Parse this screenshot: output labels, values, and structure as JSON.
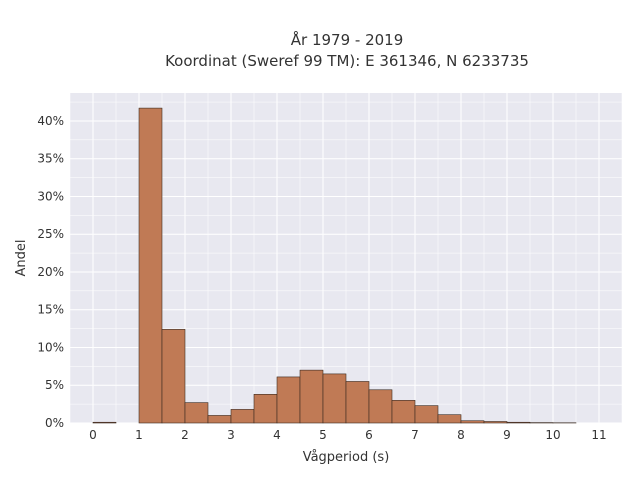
{
  "chart_data": {
    "type": "bar",
    "title_line1": "År 1979 - 2019",
    "title_line2": "Koordinat (Sweref 99 TM): E 361346, N 6233735",
    "xlabel": "Vågperiod (s)",
    "ylabel": "Andel",
    "xlim": [
      -0.5,
      11.5
    ],
    "ylim": [
      0,
      0.437
    ],
    "grid": true,
    "bin_width": 0.5,
    "x_ticks": [
      0,
      1,
      2,
      3,
      4,
      5,
      6,
      7,
      8,
      9,
      10,
      11
    ],
    "x_tick_labels": [
      "0",
      "1",
      "2",
      "3",
      "4",
      "5",
      "6",
      "7",
      "8",
      "9",
      "10",
      "11"
    ],
    "y_ticks": [
      0,
      0.05,
      0.1,
      0.15,
      0.2,
      0.25,
      0.3,
      0.35,
      0.4
    ],
    "y_tick_labels": [
      "0%",
      "5%",
      "10%",
      "15%",
      "20%",
      "25%",
      "30%",
      "35%",
      "40%"
    ],
    "bins": [
      {
        "x0": 0.0,
        "x1": 0.5,
        "value": 0.001
      },
      {
        "x0": 1.0,
        "x1": 1.5,
        "value": 0.417
      },
      {
        "x0": 1.5,
        "x1": 2.0,
        "value": 0.124
      },
      {
        "x0": 2.0,
        "x1": 2.5,
        "value": 0.027
      },
      {
        "x0": 2.5,
        "x1": 3.0,
        "value": 0.01
      },
      {
        "x0": 3.0,
        "x1": 3.5,
        "value": 0.018
      },
      {
        "x0": 3.5,
        "x1": 4.0,
        "value": 0.038
      },
      {
        "x0": 4.0,
        "x1": 4.5,
        "value": 0.061
      },
      {
        "x0": 4.5,
        "x1": 5.0,
        "value": 0.07
      },
      {
        "x0": 5.0,
        "x1": 5.5,
        "value": 0.065
      },
      {
        "x0": 5.5,
        "x1": 6.0,
        "value": 0.055
      },
      {
        "x0": 6.0,
        "x1": 6.5,
        "value": 0.044
      },
      {
        "x0": 6.5,
        "x1": 7.0,
        "value": 0.03
      },
      {
        "x0": 7.0,
        "x1": 7.5,
        "value": 0.023
      },
      {
        "x0": 7.5,
        "x1": 8.0,
        "value": 0.011
      },
      {
        "x0": 8.0,
        "x1": 8.5,
        "value": 0.003
      },
      {
        "x0": 8.5,
        "x1": 9.0,
        "value": 0.002
      },
      {
        "x0": 9.0,
        "x1": 9.5,
        "value": 0.001
      },
      {
        "x0": 9.5,
        "x1": 10.0,
        "value": 0.0005
      },
      {
        "x0": 10.0,
        "x1": 10.5,
        "value": 0.0003
      }
    ],
    "colors": {
      "bar_fill": "#c07a55",
      "bar_stroke": "#3a2a20",
      "plot_bg": "#e8e8f0",
      "grid": "#ffffff"
    }
  }
}
